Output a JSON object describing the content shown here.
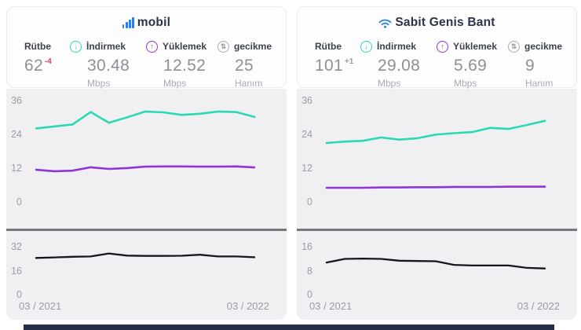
{
  "panels": [
    {
      "title": "mobil",
      "rank": {
        "label": "Rütbe",
        "value": "62",
        "change": "-4"
      },
      "download": {
        "label": "İndirmek",
        "value": "30.48",
        "unit": "Mbps"
      },
      "upload": {
        "label": "Yüklemek",
        "value": "12.52",
        "unit": "Mbps"
      },
      "latency": {
        "label": "gecikme",
        "value": "25",
        "unit": "Hanım"
      }
    },
    {
      "title": "Sabit Genis Bant",
      "rank": {
        "label": "Rütbe",
        "value": "101",
        "change": "+1"
      },
      "download": {
        "label": "İndirmek",
        "value": "29.08",
        "unit": "Mbps"
      },
      "upload": {
        "label": "Yüklemek",
        "value": "5.69",
        "unit": "Mbps"
      },
      "latency": {
        "label": "gecikme",
        "value": "9",
        "unit": "Hanım"
      }
    }
  ],
  "icons": {
    "mobile_title": "signal-bars-icon",
    "fixed_title": "wifi-icon",
    "download": "↓",
    "upload": "↑",
    "latency": "⇅"
  },
  "colors": {
    "download_line": "#2bd9b4",
    "upload_line": "#8f35d6",
    "latency_line": "#16161f",
    "brand_blue": "#2680eb",
    "rank_change_negative": "#e23a70",
    "rank_change_positive": "#9b9ba3",
    "bottom_bar": "#27304a"
  },
  "chart_data": [
    {
      "id": "mobile-speeds",
      "type": "line",
      "title": "mobil download/upload Mbps over time",
      "x_range": [
        "03 / 2021",
        "03 / 2022"
      ],
      "ylim": [
        0,
        36
      ],
      "yticks": [
        "36",
        "24",
        "12",
        "0"
      ],
      "grid": false,
      "legend": "none",
      "series": [
        {
          "name": "İndirmek (download Mbps)",
          "color": "#2bd9b4",
          "values": [
            26.4,
            27.1,
            27.8,
            32.2,
            28.4,
            30.3,
            32.4,
            32.1,
            31.2,
            31.6,
            32.4,
            32.2,
            30.48
          ]
        },
        {
          "name": "Yüklemek (upload Mbps)",
          "color": "#8f35d6",
          "values": [
            11.7,
            11.2,
            11.4,
            12.6,
            12.0,
            12.3,
            12.8,
            12.9,
            12.9,
            12.8,
            12.8,
            12.9,
            12.52
          ]
        }
      ]
    },
    {
      "id": "mobile-latency",
      "type": "line",
      "title": "mobil gecikme over time",
      "x_range": [
        "03 / 2021",
        "03 / 2022"
      ],
      "ylim": [
        0,
        32
      ],
      "yticks": [
        "32",
        "16",
        "0"
      ],
      "grid": false,
      "legend": "none",
      "series": [
        {
          "name": "gecikme (ms)",
          "color": "#16161f",
          "values": [
            25.0,
            25.4,
            25.8,
            26.0,
            28.0,
            26.6,
            26.4,
            26.4,
            26.5,
            27.2,
            26.0,
            26.0,
            25.5
          ]
        }
      ]
    },
    {
      "id": "fixed-speeds",
      "type": "line",
      "title": "Sabit Genis Bant download/upload Mbps over time",
      "x_range": [
        "03 / 2021",
        "03 / 2022"
      ],
      "ylim": [
        0,
        36
      ],
      "yticks": [
        "36",
        "24",
        "12",
        "0"
      ],
      "grid": false,
      "legend": "none",
      "series": [
        {
          "name": "İndirmek (download Mbps)",
          "color": "#2bd9b4",
          "values": [
            21.2,
            21.7,
            22.0,
            23.2,
            22.4,
            22.9,
            24.2,
            24.7,
            25.1,
            26.6,
            26.2,
            27.6,
            29.08
          ]
        },
        {
          "name": "Yüklemek (upload Mbps)",
          "color": "#8f35d6",
          "values": [
            5.3,
            5.3,
            5.3,
            5.4,
            5.4,
            5.5,
            5.5,
            5.6,
            5.6,
            5.6,
            5.7,
            5.7,
            5.69
          ]
        }
      ]
    },
    {
      "id": "fixed-latency",
      "type": "line",
      "title": "Sabit Genis Bant gecikme over time",
      "x_range": [
        "03 / 2021",
        "03 / 2022"
      ],
      "ylim": [
        0,
        16
      ],
      "yticks": [
        "16",
        "8",
        "0"
      ],
      "grid": false,
      "legend": "none",
      "series": [
        {
          "name": "gecikme (ms)",
          "color": "#16161f",
          "values": [
            11.0,
            12.2,
            12.3,
            12.2,
            11.6,
            11.5,
            11.4,
            10.2,
            10.0,
            10.0,
            10.0,
            9.2,
            9.0
          ]
        }
      ]
    }
  ]
}
